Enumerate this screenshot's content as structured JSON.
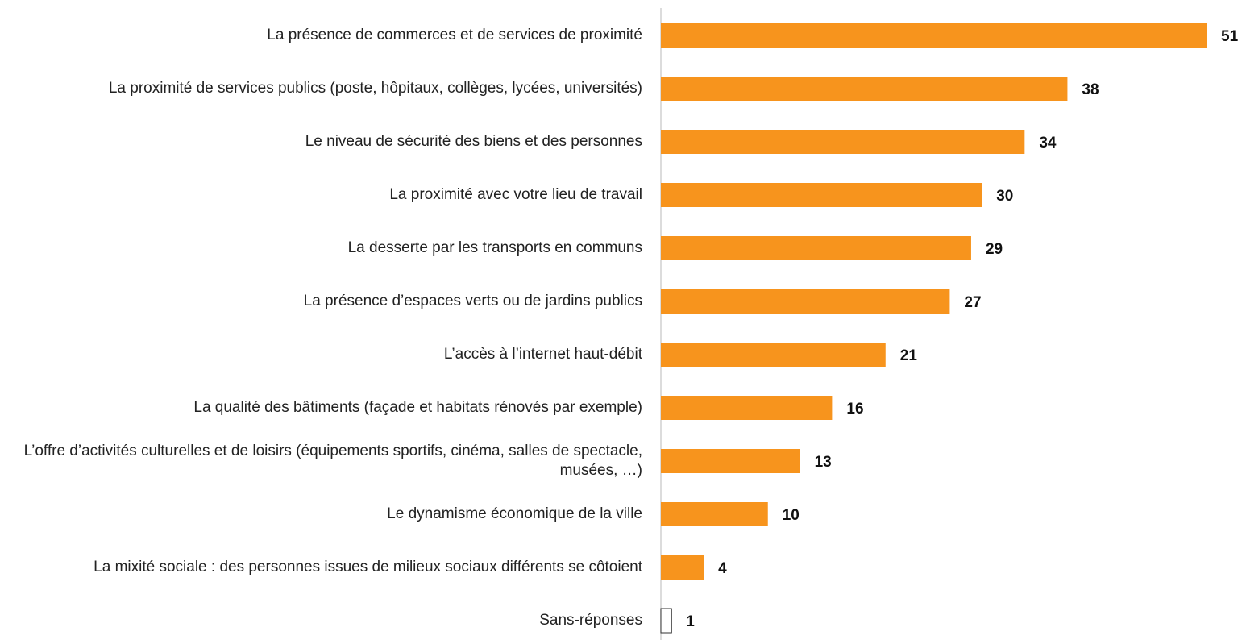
{
  "chart_data": {
    "type": "barh",
    "categories": [
      "La présence de commerces et de services de proximité",
      "La proximité de services publics (poste, hôpitaux, collèges, lycées, universités)",
      "Le niveau de sécurité des biens et des personnes",
      "La proximité avec votre lieu de travail",
      "La desserte par les transports en communs",
      "La présence d’espaces verts ou de jardins publics",
      "L’accès à l’internet haut-débit",
      "La qualité des bâtiments (façade et habitats rénovés par exemple)",
      "L’offre d’activités culturelles et de loisirs (équipements sportifs, cinéma, salles de spectacle, musées, …)",
      "Le dynamisme économique de la ville",
      "La mixité sociale : des personnes issues de milieux sociaux différents se côtoient",
      "Sans-réponses"
    ],
    "values": [
      51,
      38,
      34,
      30,
      29,
      27,
      21,
      16,
      13,
      10,
      4,
      1
    ],
    "colors": [
      "#f7941d",
      "#f7941d",
      "#f7941d",
      "#f7941d",
      "#f7941d",
      "#f7941d",
      "#f7941d",
      "#f7941d",
      "#f7941d",
      "#f7941d",
      "#f7941d",
      "#ffffff"
    ]
  }
}
